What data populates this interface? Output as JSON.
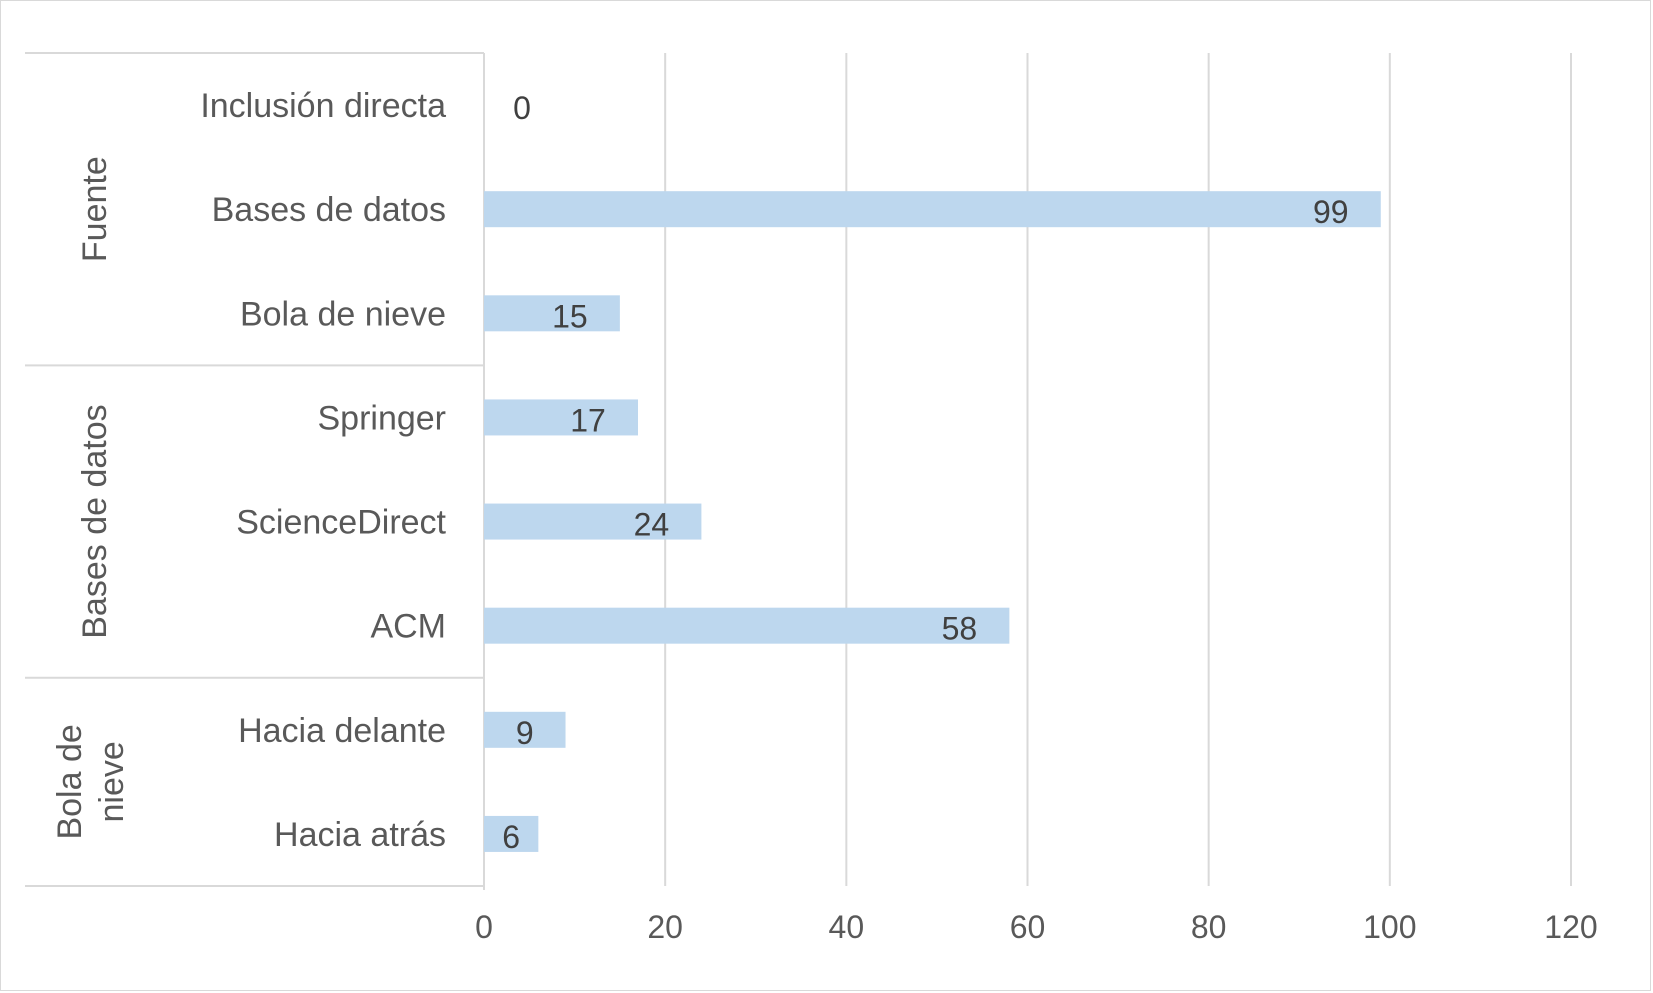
{
  "chart_data": {
    "type": "bar",
    "orientation": "horizontal",
    "title": "",
    "xlabel": "",
    "ylabel": "",
    "xlim": [
      0,
      120
    ],
    "x_ticks": [
      "0",
      "20",
      "40",
      "60",
      "80",
      "100",
      "120"
    ],
    "grid": true,
    "legend": "none",
    "bar_color": "#bdd7ee",
    "groups": [
      {
        "name": "Fuente",
        "categories": [
          "Inclusión directa",
          "Bases de datos",
          "Bola de nieve"
        ],
        "values": [
          0,
          99,
          15
        ]
      },
      {
        "name": "Bases de datos",
        "categories": [
          "Springer",
          "ScienceDirect",
          "ACM"
        ],
        "values": [
          17,
          24,
          58
        ]
      },
      {
        "name": "Bola de nieve",
        "categories": [
          "Hacia delante",
          "Hacia atrás"
        ],
        "values": [
          9,
          6
        ]
      }
    ]
  }
}
